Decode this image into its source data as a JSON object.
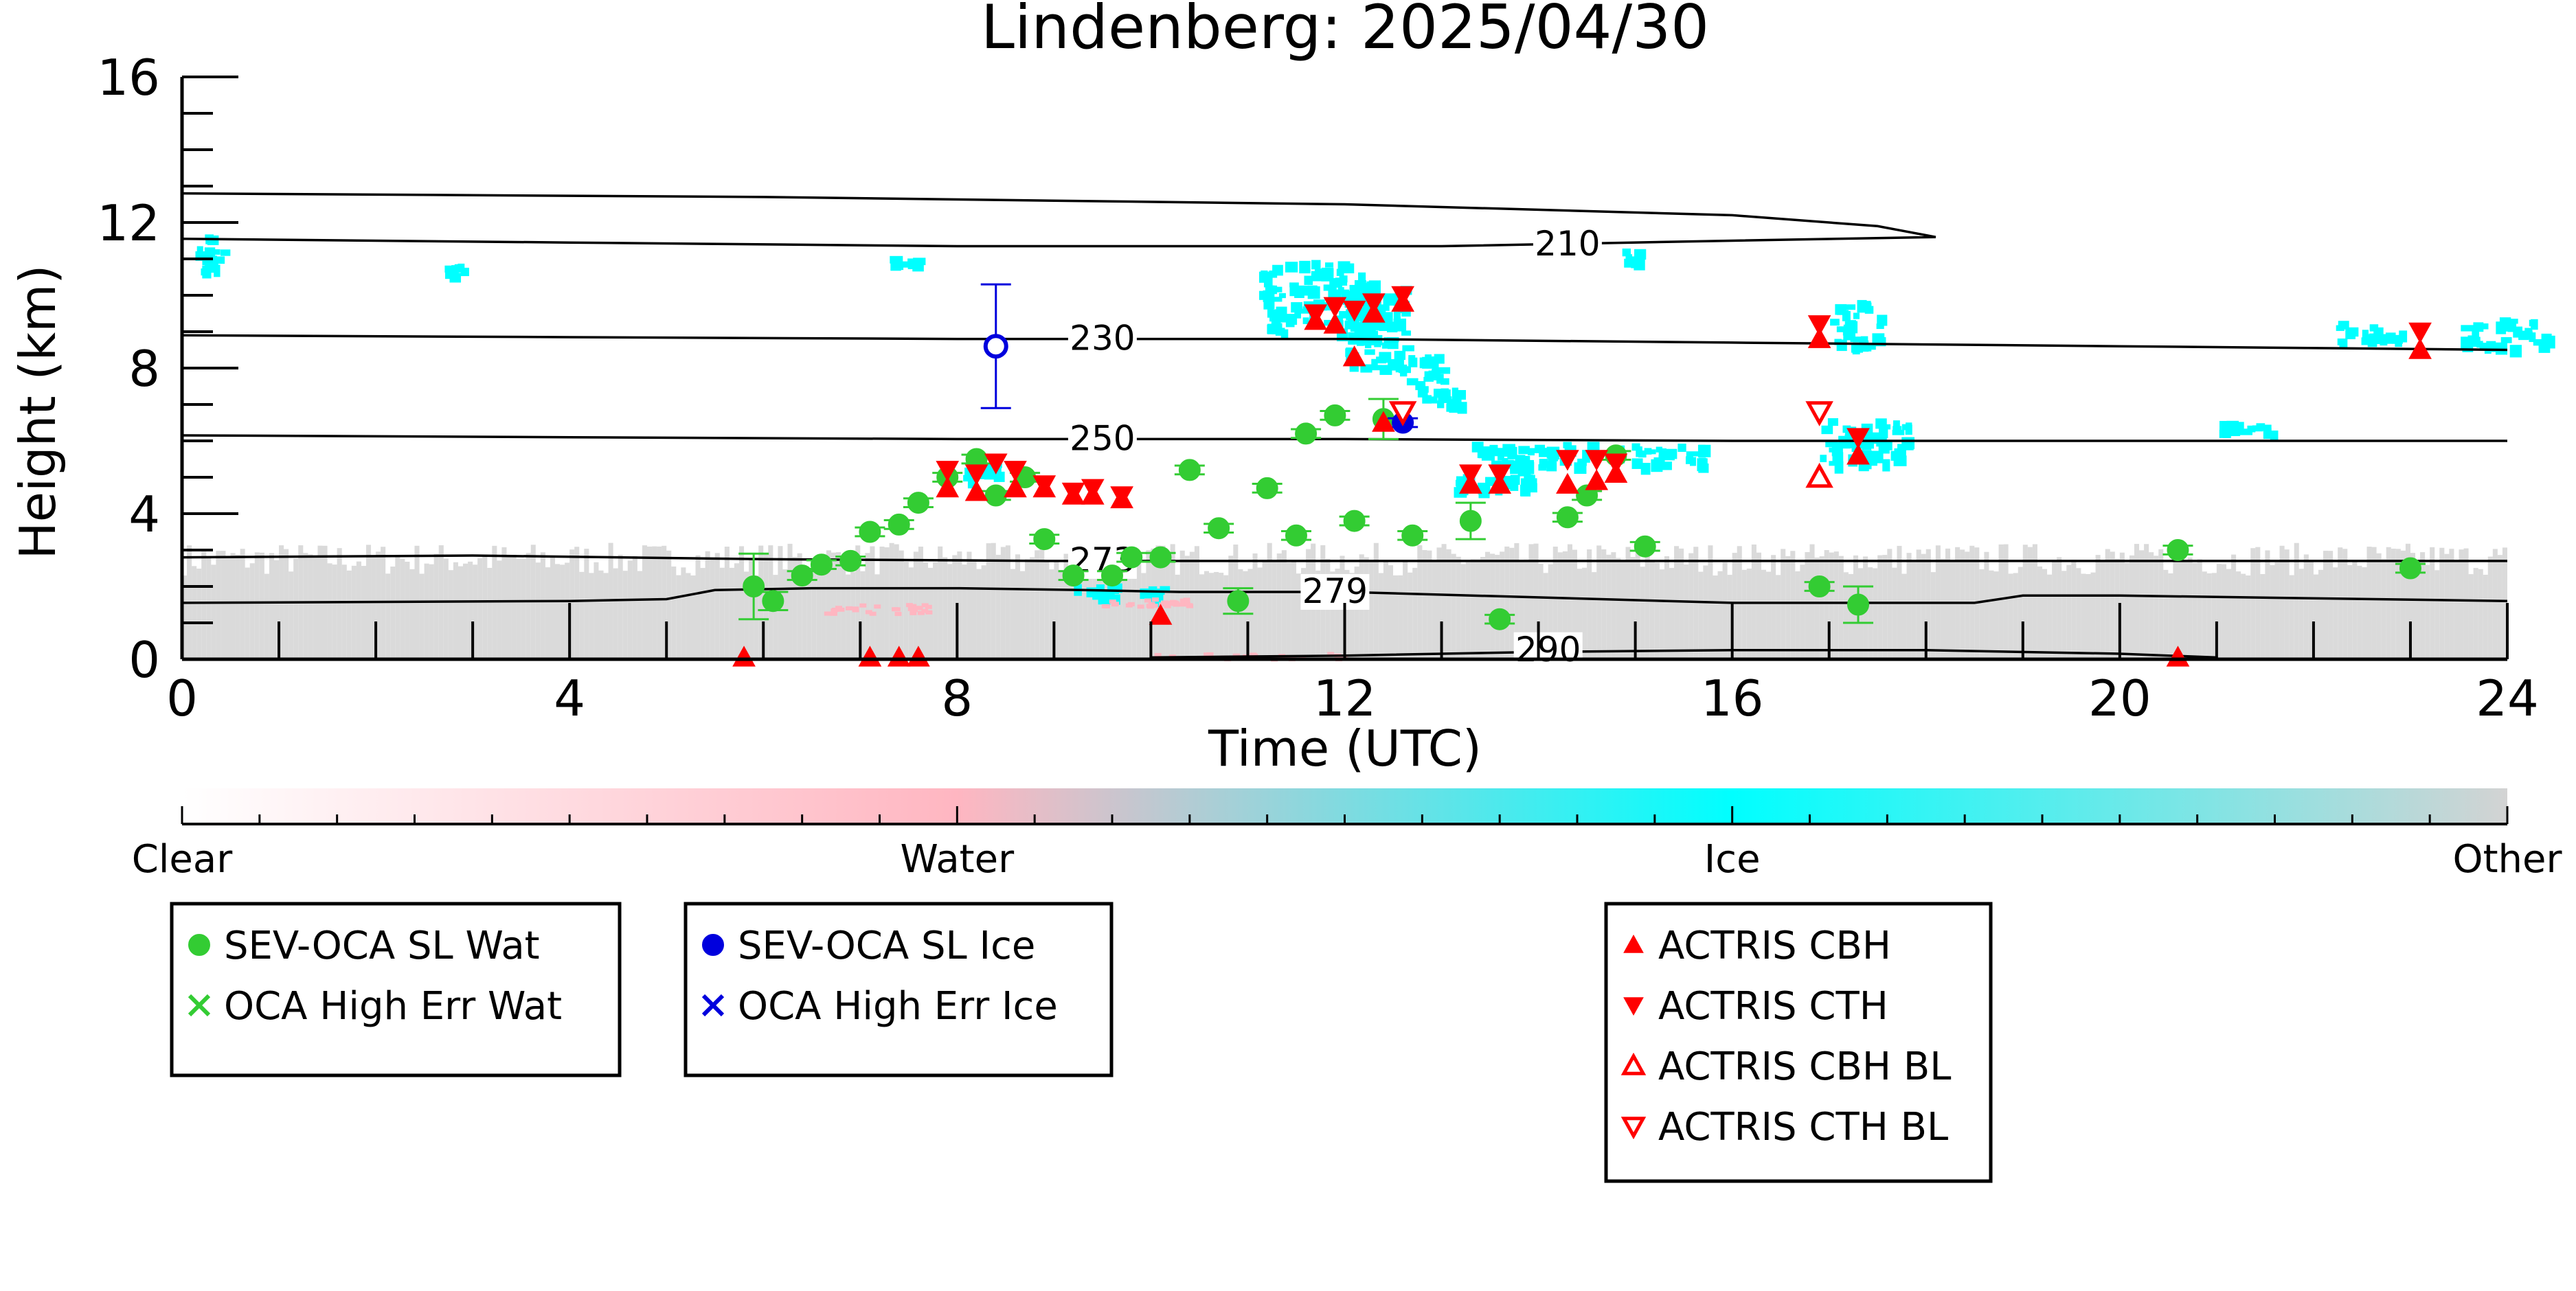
{
  "chart_data": {
    "type": "scatter",
    "title": "Lindenberg: 2025/04/30",
    "xlabel": "Time (UTC)",
    "ylabel": "Height (km)",
    "xlim": [
      0,
      24
    ],
    "ylim": [
      0,
      16
    ],
    "xticks": [
      0,
      4,
      8,
      12,
      16,
      20,
      24
    ],
    "yticks": [
      0,
      4,
      8,
      12,
      16
    ],
    "colorbar": {
      "labels": [
        "Clear",
        "Water",
        "Ice",
        "Other"
      ],
      "colors": [
        "#ffffff",
        "#ffb6c1",
        "#00ffff",
        "#d3d3d3"
      ]
    },
    "contours": [
      {
        "label": "210",
        "points": [
          [
            0,
            12.8
          ],
          [
            6,
            12.7
          ],
          [
            12,
            12.5
          ],
          [
            16,
            12.2
          ],
          [
            17.5,
            11.9
          ],
          [
            18.1,
            11.6
          ],
          [
            16,
            11.5
          ],
          [
            13,
            11.35
          ],
          [
            8,
            11.35
          ],
          [
            4,
            11.45
          ],
          [
            0,
            11.55
          ]
        ]
      },
      {
        "label": "230",
        "points": [
          [
            0,
            8.9
          ],
          [
            4,
            8.85
          ],
          [
            8,
            8.8
          ],
          [
            12,
            8.8
          ],
          [
            16,
            8.7
          ],
          [
            20,
            8.6
          ],
          [
            24,
            8.5
          ]
        ]
      },
      {
        "label": "250",
        "points": [
          [
            0,
            6.15
          ],
          [
            4,
            6.1
          ],
          [
            8,
            6.05
          ],
          [
            12,
            6.05
          ],
          [
            16,
            6.0
          ],
          [
            20,
            6.0
          ],
          [
            24,
            6.0
          ]
        ]
      },
      {
        "label": "273",
        "points": [
          [
            0,
            2.8
          ],
          [
            3,
            2.85
          ],
          [
            6,
            2.75
          ],
          [
            9,
            2.7
          ],
          [
            12,
            2.7
          ],
          [
            16,
            2.7
          ],
          [
            20,
            2.7
          ],
          [
            24,
            2.7
          ]
        ]
      },
      {
        "label": "279",
        "points": [
          [
            0,
            1.55
          ],
          [
            4,
            1.6
          ],
          [
            5,
            1.65
          ],
          [
            5.5,
            1.9
          ],
          [
            6.5,
            1.95
          ],
          [
            8,
            1.95
          ],
          [
            9.3,
            1.9
          ],
          [
            10.3,
            1.85
          ],
          [
            12,
            1.85
          ],
          [
            16,
            1.55
          ],
          [
            18.5,
            1.55
          ],
          [
            19,
            1.75
          ],
          [
            20,
            1.75
          ],
          [
            24,
            1.6
          ]
        ]
      },
      {
        "label": "290",
        "points": [
          [
            10,
            0.05
          ],
          [
            12,
            0.1
          ],
          [
            14,
            0.2
          ],
          [
            16,
            0.25
          ],
          [
            18,
            0.25
          ],
          [
            20,
            0.15
          ],
          [
            21,
            0.05
          ]
        ]
      }
    ],
    "series": [
      {
        "name": "SEV-OCA SL Wat",
        "color": "#33cc33",
        "marker": "filled-circle",
        "points": [
          {
            "x": 5.9,
            "y": 2.0,
            "err": 0.9
          },
          {
            "x": 6.1,
            "y": 1.6,
            "err": 0.25
          },
          {
            "x": 6.4,
            "y": 2.3
          },
          {
            "x": 6.6,
            "y": 2.6
          },
          {
            "x": 6.9,
            "y": 2.7
          },
          {
            "x": 7.1,
            "y": 3.5
          },
          {
            "x": 7.4,
            "y": 3.7
          },
          {
            "x": 7.6,
            "y": 4.3
          },
          {
            "x": 7.9,
            "y": 5.0
          },
          {
            "x": 8.2,
            "y": 5.5
          },
          {
            "x": 8.4,
            "y": 4.5
          },
          {
            "x": 8.7,
            "y": 5.0
          },
          {
            "x": 8.9,
            "y": 3.3
          },
          {
            "x": 9.2,
            "y": 2.3
          },
          {
            "x": 9.6,
            "y": 2.3
          },
          {
            "x": 9.8,
            "y": 2.8
          },
          {
            "x": 10.1,
            "y": 2.8
          },
          {
            "x": 10.4,
            "y": 5.2
          },
          {
            "x": 10.7,
            "y": 3.6
          },
          {
            "x": 10.9,
            "y": 1.6,
            "err": 0.35
          },
          {
            "x": 11.2,
            "y": 4.7
          },
          {
            "x": 11.5,
            "y": 3.4
          },
          {
            "x": 11.6,
            "y": 6.2
          },
          {
            "x": 11.9,
            "y": 6.7
          },
          {
            "x": 12.1,
            "y": 3.8
          },
          {
            "x": 12.4,
            "y": 6.6,
            "err": 0.55
          },
          {
            "x": 12.7,
            "y": 3.4
          },
          {
            "x": 13.3,
            "y": 3.8,
            "err": 0.5
          },
          {
            "x": 13.6,
            "y": 1.1
          },
          {
            "x": 14.3,
            "y": 3.9
          },
          {
            "x": 14.5,
            "y": 4.5
          },
          {
            "x": 14.8,
            "y": 5.6
          },
          {
            "x": 15.1,
            "y": 3.1
          },
          {
            "x": 16.9,
            "y": 2.0
          },
          {
            "x": 17.3,
            "y": 1.5,
            "err": 0.5
          },
          {
            "x": 20.6,
            "y": 3.0
          },
          {
            "x": 23.0,
            "y": 2.5
          }
        ]
      },
      {
        "name": "OCA High Err Wat",
        "color": "#33cc33",
        "marker": "x",
        "points": []
      },
      {
        "name": "SEV-OCA SL Ice",
        "color": "#0000dd",
        "marker": "filled-circle",
        "points": [
          {
            "x": 8.4,
            "y": 8.6,
            "err": 1.7,
            "hollow": true
          },
          {
            "x": 12.6,
            "y": 6.5
          }
        ]
      },
      {
        "name": "OCA High Err Ice",
        "color": "#0000dd",
        "marker": "x",
        "points": []
      },
      {
        "name": "ACTRIS CBH",
        "color": "#ff0000",
        "marker": "triangle-up",
        "points": [
          {
            "x": 5.8,
            "y": 0.05
          },
          {
            "x": 7.1,
            "y": 0.05
          },
          {
            "x": 7.4,
            "y": 0.05
          },
          {
            "x": 7.6,
            "y": 0.05
          },
          {
            "x": 7.9,
            "y": 4.7
          },
          {
            "x": 8.2,
            "y": 4.6
          },
          {
            "x": 8.6,
            "y": 4.7
          },
          {
            "x": 8.9,
            "y": 4.7
          },
          {
            "x": 9.2,
            "y": 4.5
          },
          {
            "x": 9.4,
            "y": 4.5
          },
          {
            "x": 9.7,
            "y": 4.4
          },
          {
            "x": 10.1,
            "y": 1.2
          },
          {
            "x": 11.7,
            "y": 9.3
          },
          {
            "x": 11.9,
            "y": 9.2
          },
          {
            "x": 12.1,
            "y": 8.3
          },
          {
            "x": 12.3,
            "y": 9.5
          },
          {
            "x": 12.4,
            "y": 6.5
          },
          {
            "x": 12.6,
            "y": 9.8
          },
          {
            "x": 13.3,
            "y": 4.8
          },
          {
            "x": 13.6,
            "y": 4.8
          },
          {
            "x": 14.3,
            "y": 4.8
          },
          {
            "x": 14.6,
            "y": 4.9
          },
          {
            "x": 14.8,
            "y": 5.1
          },
          {
            "x": 16.9,
            "y": 8.8
          },
          {
            "x": 17.3,
            "y": 5.6
          },
          {
            "x": 20.6,
            "y": 0.05
          },
          {
            "x": 23.1,
            "y": 8.5
          }
        ]
      },
      {
        "name": "ACTRIS CTH",
        "color": "#ff0000",
        "marker": "triangle-down",
        "points": [
          {
            "x": 7.9,
            "y": 5.2
          },
          {
            "x": 8.2,
            "y": 5.1
          },
          {
            "x": 8.4,
            "y": 5.4
          },
          {
            "x": 8.6,
            "y": 5.2
          },
          {
            "x": 8.9,
            "y": 4.8
          },
          {
            "x": 9.2,
            "y": 4.6
          },
          {
            "x": 9.4,
            "y": 4.7
          },
          {
            "x": 9.7,
            "y": 4.5
          },
          {
            "x": 11.7,
            "y": 9.5
          },
          {
            "x": 11.9,
            "y": 9.7
          },
          {
            "x": 12.1,
            "y": 9.6
          },
          {
            "x": 12.3,
            "y": 9.8
          },
          {
            "x": 12.6,
            "y": 10.0
          },
          {
            "x": 13.3,
            "y": 5.1
          },
          {
            "x": 13.6,
            "y": 5.1
          },
          {
            "x": 14.3,
            "y": 5.5
          },
          {
            "x": 14.6,
            "y": 5.5
          },
          {
            "x": 14.8,
            "y": 5.4
          },
          {
            "x": 16.9,
            "y": 9.2
          },
          {
            "x": 17.3,
            "y": 6.1
          },
          {
            "x": 23.1,
            "y": 9.0
          }
        ]
      },
      {
        "name": "ACTRIS CBH BL",
        "color": "#ff0000",
        "marker": "hollow-triangle-up",
        "points": [
          {
            "x": 16.9,
            "y": 5.0
          }
        ]
      },
      {
        "name": "ACTRIS CTH BL",
        "color": "#ff0000",
        "marker": "hollow-triangle-down",
        "points": [
          {
            "x": 16.9,
            "y": 6.8
          },
          {
            "x": 12.6,
            "y": 6.8
          }
        ]
      }
    ],
    "legend_boxes": [
      [
        "SEV-OCA SL Wat",
        "OCA High Err Wat"
      ],
      [
        "SEV-OCA SL Ice",
        "OCA High Err Ice"
      ],
      [
        "ACTRIS CBH",
        "ACTRIS CTH",
        "ACTRIS CBH BL",
        "ACTRIS CTH BL"
      ]
    ]
  }
}
